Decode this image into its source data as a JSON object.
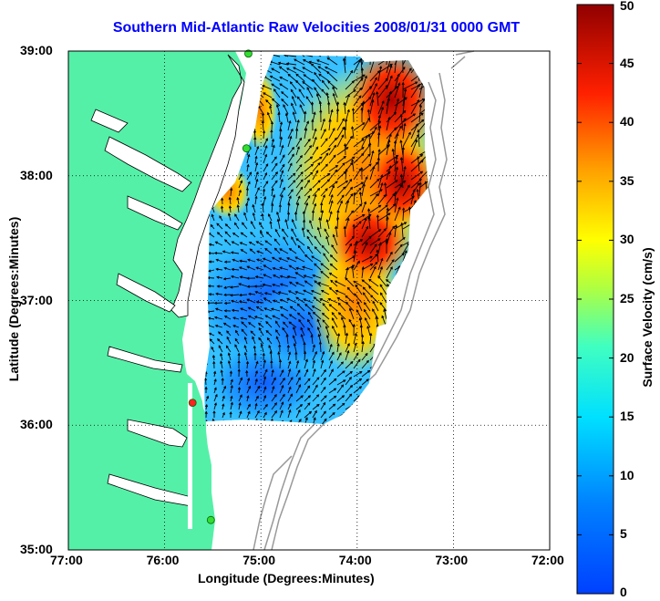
{
  "map": {
    "title": "Southern Mid-Atlantic Raw Velocities 2008/01/31 0000 GMT",
    "xlabel": "Longitude (Degrees:Minutes)",
    "ylabel": "Latitude (Degrees:Minutes)",
    "x_ticks": [
      "77:00",
      "76:00",
      "75:00",
      "74:00",
      "73:00",
      "72:00"
    ],
    "y_ticks": [
      "39:00",
      "38:00",
      "37:00",
      "36:00",
      "35:00"
    ],
    "x_range": [
      -77,
      -72
    ],
    "y_range": [
      35,
      39
    ],
    "grid": "dotted",
    "land_color": "#55f0a8",
    "colorbar": {
      "label": "Surface Velocity (cm/s)",
      "ticks": [
        "50",
        "45",
        "40",
        "35",
        "30",
        "25",
        "20",
        "15",
        "10",
        "5",
        "0"
      ],
      "range": [
        0,
        50
      ],
      "colormap": "jet"
    },
    "stations": [
      {
        "lon": -75.13,
        "lat": 38.98,
        "color": "#33dd33"
      },
      {
        "lon": -75.15,
        "lat": 38.22,
        "color": "#33dd33"
      },
      {
        "lon": -75.71,
        "lat": 36.18,
        "color": "#ff2020"
      },
      {
        "lon": -75.52,
        "lat": 35.24,
        "color": "#33dd33"
      }
    ]
  }
}
